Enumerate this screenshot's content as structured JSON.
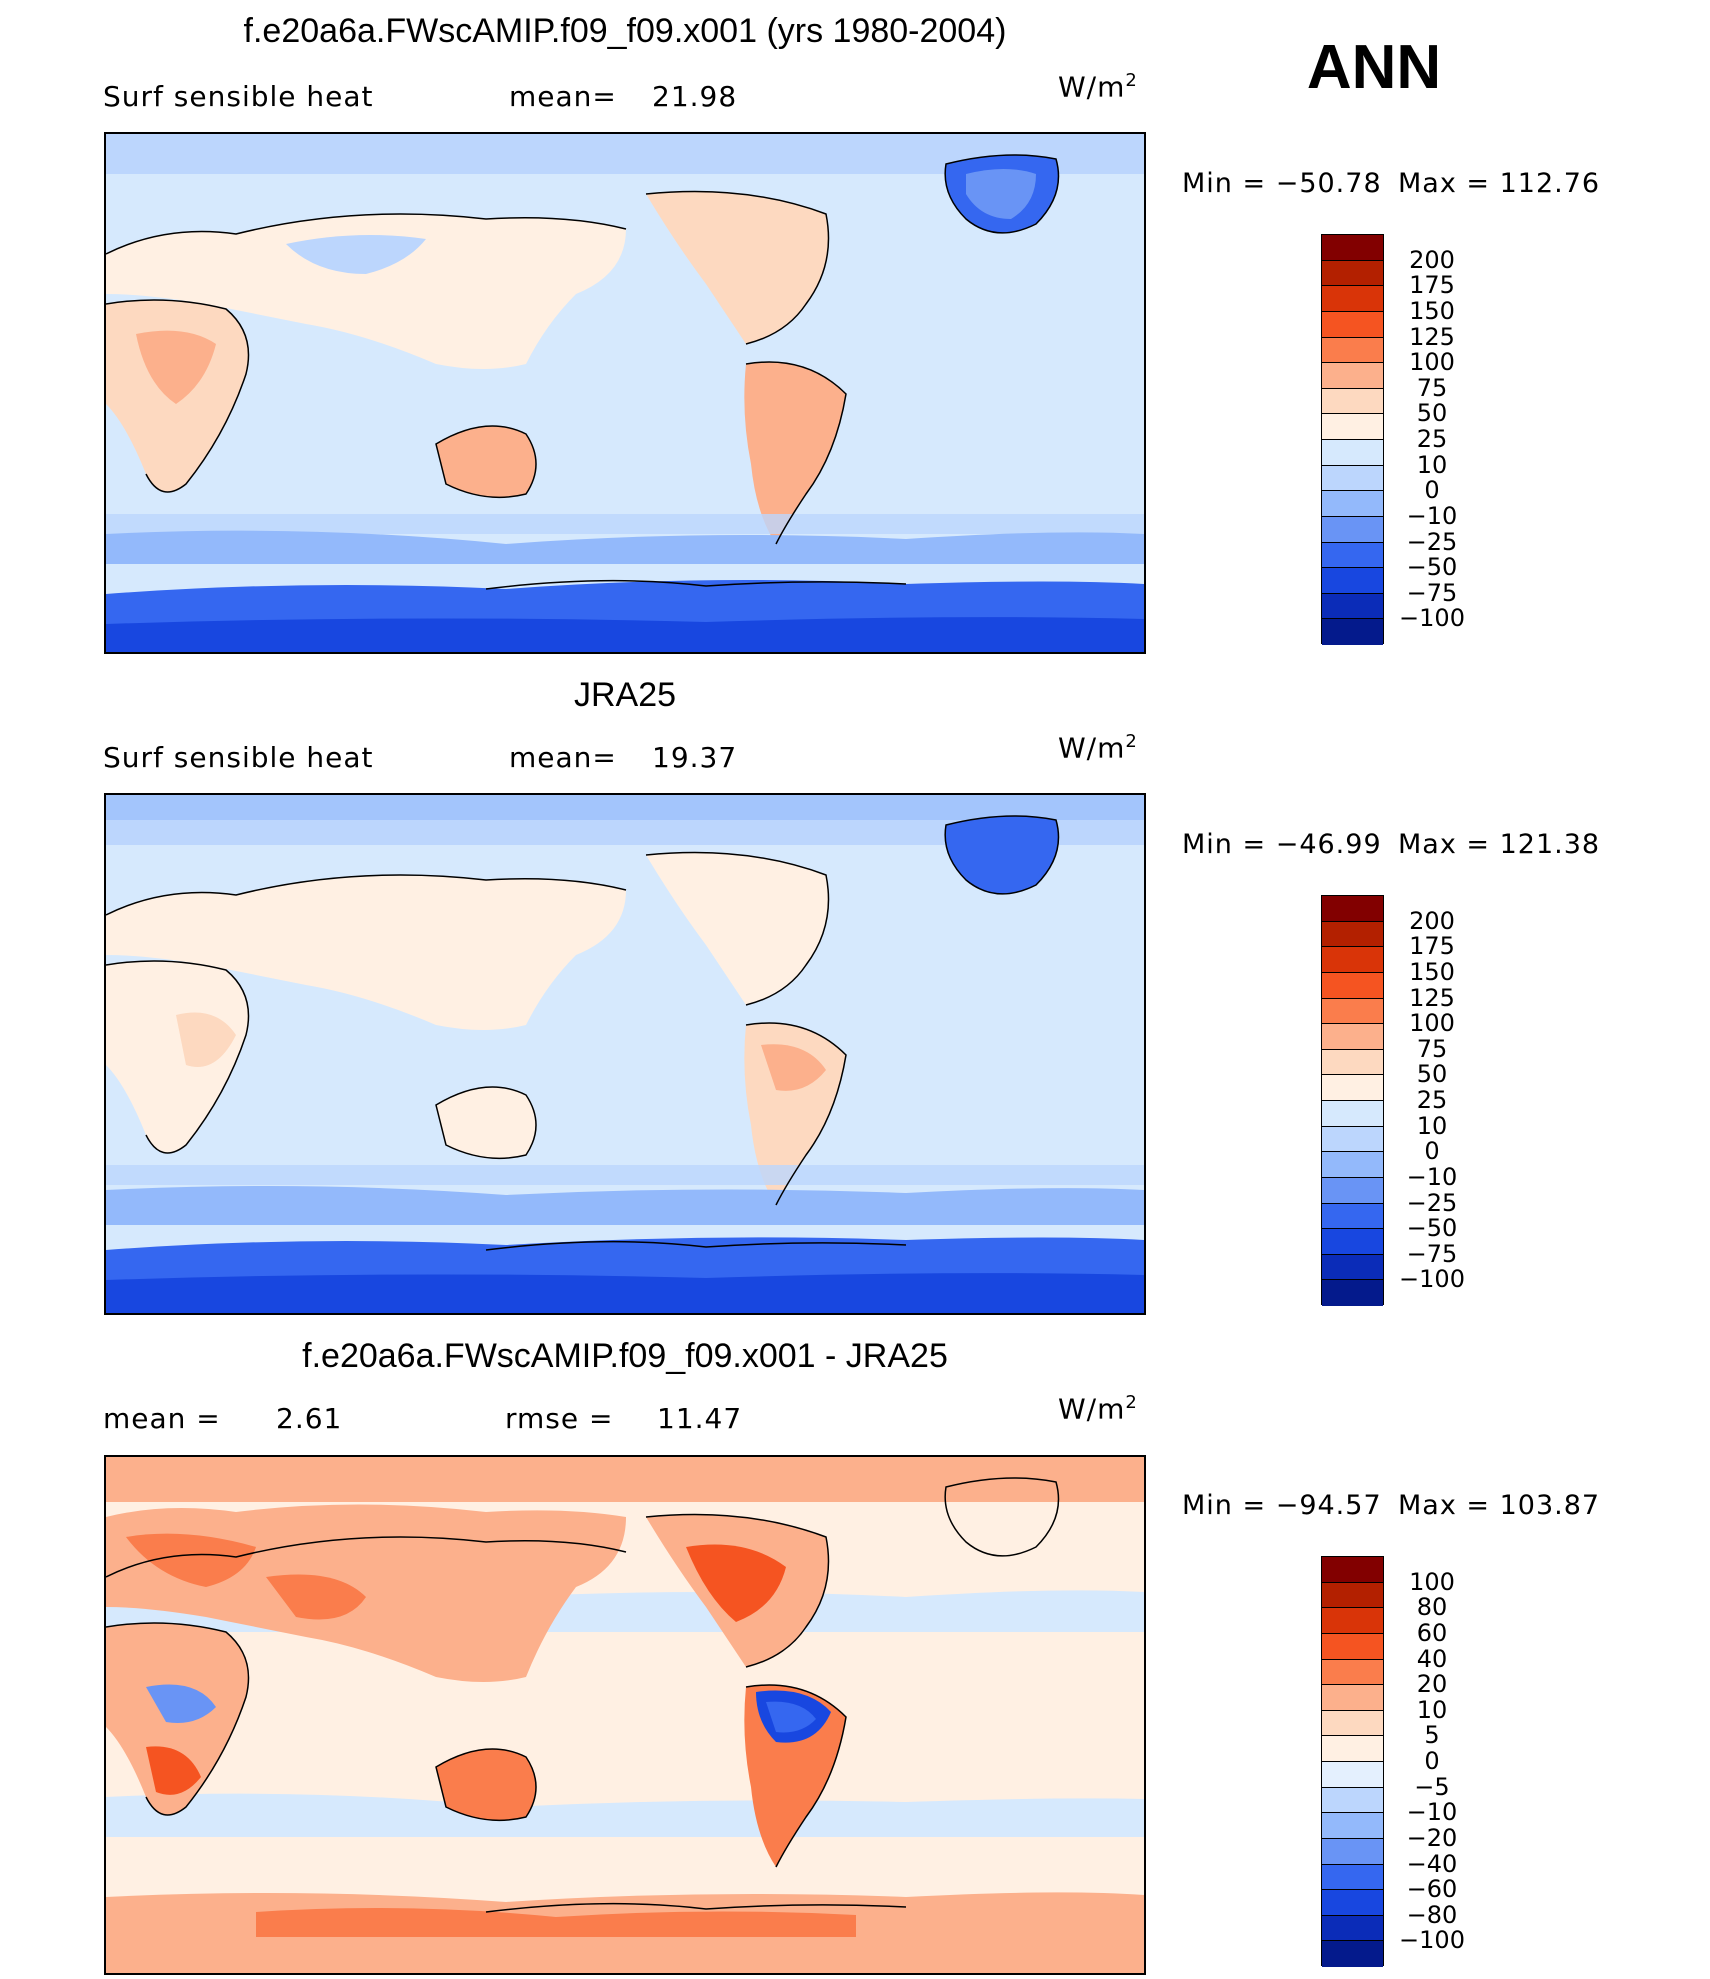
{
  "season": "ANN",
  "panels": [
    {
      "title": "f.e20a6a.FWscAMIP.f09_f09.x001 (yrs 1980-2004)",
      "left_text": "Surf  sensible  heat",
      "mid_label": "mean=",
      "mid_value": "21.98",
      "units_base": "W/m",
      "units_exp": "2",
      "min_label": "Min  =  −50.78",
      "max_label": "Max  =  112.76",
      "colorbar": {
        "labels": [
          "200",
          "175",
          "150",
          "125",
          "100",
          "75",
          "50",
          "25",
          "10",
          "0",
          "−10",
          "−25",
          "−50",
          "−75",
          "−100"
        ],
        "colors": [
          "#820000",
          "#b32000",
          "#d93408",
          "#f55421",
          "#fa7d4c",
          "#fcb08c",
          "#fdd9c0",
          "#fff0e3",
          "#d6e9fd",
          "#bcd6fd",
          "#93b9fb",
          "#6994f5",
          "#3567f0",
          "#1847e0",
          "#0b2cb8",
          "#041a8c"
        ]
      }
    },
    {
      "title": "JRA25",
      "left_text": "Surf  sensible  heat",
      "mid_label": "mean=",
      "mid_value": "19.37",
      "units_base": "W/m",
      "units_exp": "2",
      "min_label": "Min  =  −46.99",
      "max_label": "Max  =  121.38",
      "colorbar": {
        "labels": [
          "200",
          "175",
          "150",
          "125",
          "100",
          "75",
          "50",
          "25",
          "10",
          "0",
          "−10",
          "−25",
          "−50",
          "−75",
          "−100"
        ],
        "colors": [
          "#820000",
          "#b32000",
          "#d93408",
          "#f55421",
          "#fa7d4c",
          "#fcb08c",
          "#fdd9c0",
          "#fff0e3",
          "#d6e9fd",
          "#bcd6fd",
          "#93b9fb",
          "#6994f5",
          "#3567f0",
          "#1847e0",
          "#0b2cb8",
          "#041a8c"
        ]
      }
    },
    {
      "title": "f.e20a6a.FWscAMIP.f09_f09.x001 - JRA25",
      "left_text": "mean  =",
      "left_value": "2.61",
      "mid_label": "rmse  =",
      "mid_value": "11.47",
      "units_base": "W/m",
      "units_exp": "2",
      "min_label": "Min  =  −94.57",
      "max_label": "Max  =  103.87",
      "colorbar": {
        "labels": [
          "100",
          "80",
          "60",
          "40",
          "20",
          "10",
          "5",
          "0",
          "−5",
          "−10",
          "−20",
          "−40",
          "−60",
          "−80",
          "−100"
        ],
        "colors": [
          "#820000",
          "#b32000",
          "#d93408",
          "#f55421",
          "#fa7d4c",
          "#fcb08c",
          "#fdd9c0",
          "#fff0e3",
          "#e4f0fe",
          "#bcd6fd",
          "#93b9fb",
          "#6994f5",
          "#3567f0",
          "#1847e0",
          "#0b2cb8",
          "#041a8c"
        ]
      }
    }
  ]
}
